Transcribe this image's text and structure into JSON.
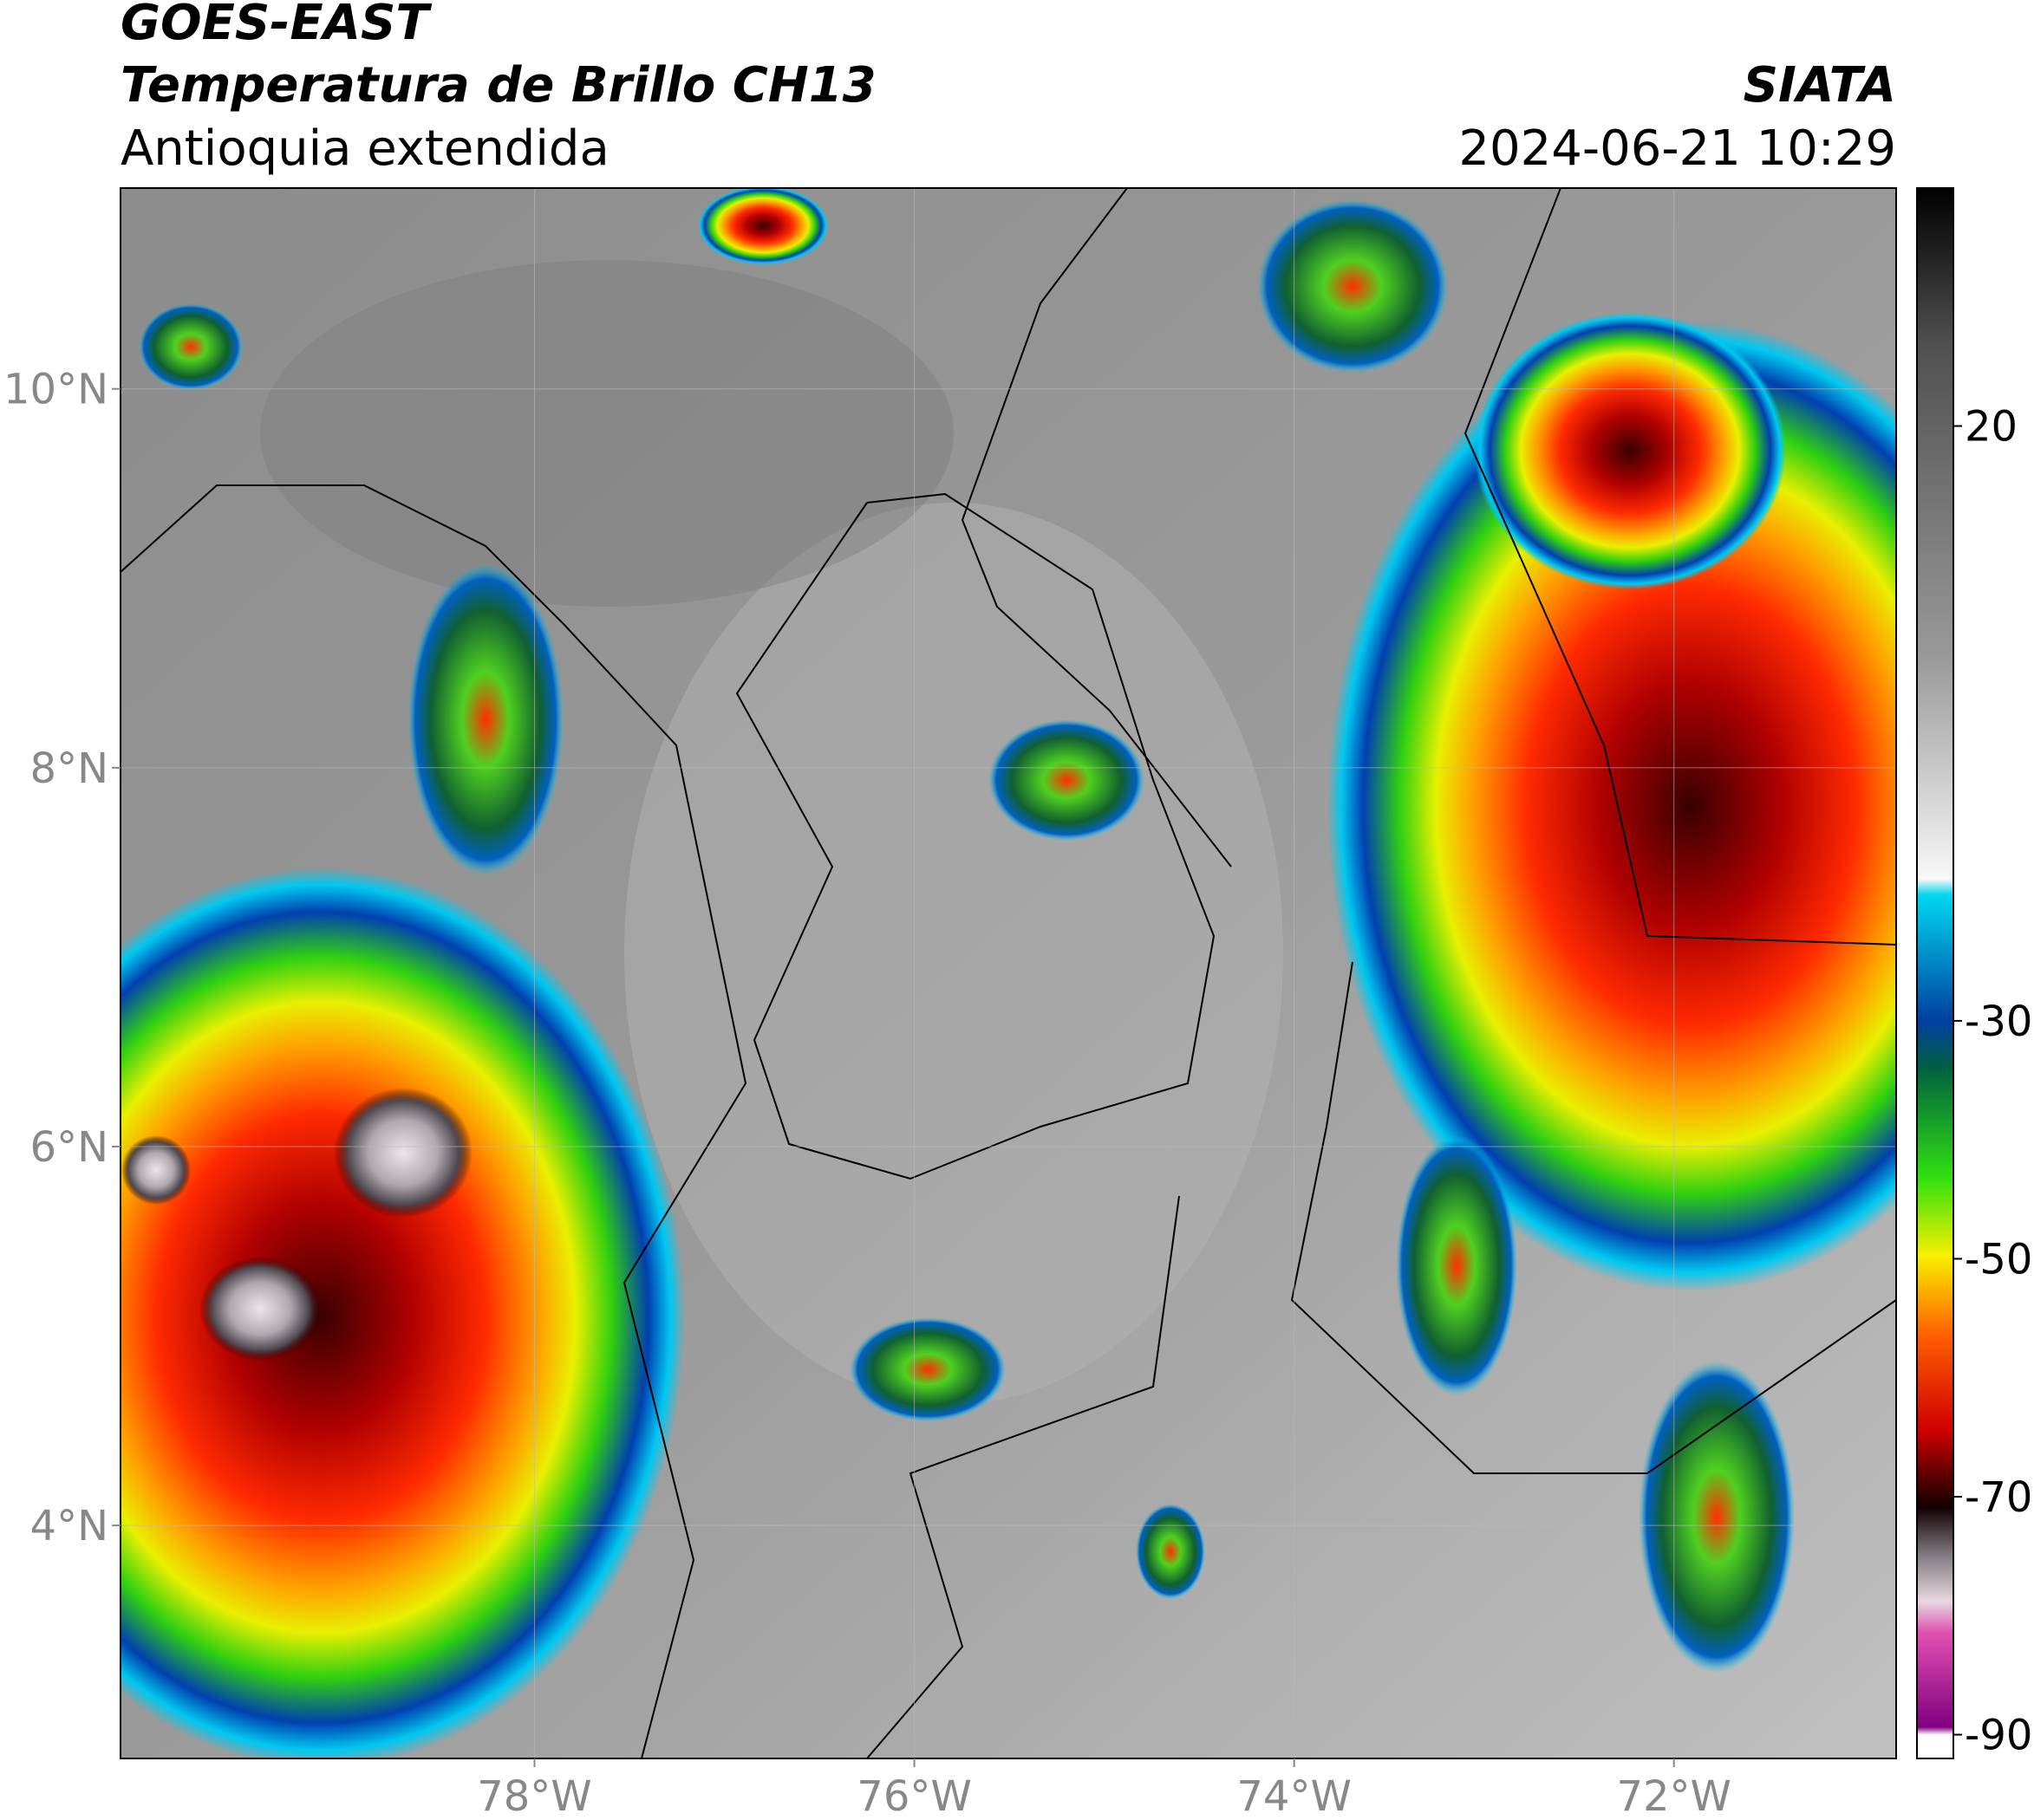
{
  "header": {
    "title": "GOES-EAST",
    "subtitle": "Temperatura de Brillo CH13",
    "region": "Antioquia extendida",
    "source": "SIATA",
    "datetime": "2024-06-21 10:29"
  },
  "map": {
    "xlim": [
      -80.18,
      -70.83
    ],
    "ylim": [
      2.77,
      11.06
    ],
    "xticks": [
      {
        "value": -78,
        "label": "78°W"
      },
      {
        "value": -76,
        "label": "76°W"
      },
      {
        "value": -74,
        "label": "74°W"
      },
      {
        "value": -72,
        "label": "72°W"
      }
    ],
    "yticks": [
      {
        "value": 4,
        "label": "4°N"
      },
      {
        "value": 6,
        "label": "6°N"
      },
      {
        "value": 8,
        "label": "8°N"
      },
      {
        "value": 10,
        "label": "10°N"
      }
    ],
    "grid": true
  },
  "colorbar": {
    "lim": [
      -92,
      40
    ],
    "ticks": [
      20,
      -30,
      -50,
      -70,
      -90
    ]
  }
}
